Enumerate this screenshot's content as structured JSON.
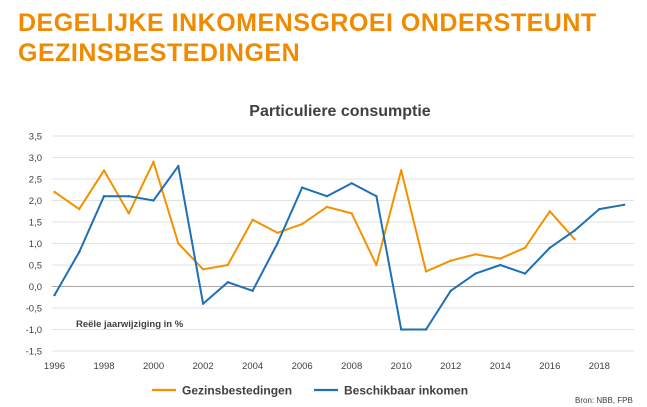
{
  "header": {
    "title_line1": "DEGELIJKE INKOMENSGROEI ONDERSTEUNT",
    "title_line2": "GEZINSBESTEDINGEN"
  },
  "source": "Bron: NBB, FPB",
  "chart_data": {
    "type": "line",
    "title": "Particuliere consumptie",
    "annotation": "Reële jaarwijziging in %",
    "x": [
      1996,
      1997,
      1998,
      1999,
      2000,
      2001,
      2002,
      2003,
      2004,
      2005,
      2006,
      2007,
      2008,
      2009,
      2010,
      2011,
      2012,
      2013,
      2014,
      2015,
      2016,
      2017,
      2018,
      2019
    ],
    "xticks": [
      1996,
      1998,
      2000,
      2002,
      2004,
      2006,
      2008,
      2010,
      2012,
      2014,
      2016,
      2018
    ],
    "xlim": [
      1995.9,
      2019.4
    ],
    "yticks": [
      "3,5",
      "3,0",
      "2,5",
      "2,0",
      "1,5",
      "1,0",
      "0,5",
      "0,0",
      "-0,5",
      "-1,0",
      "-1,5"
    ],
    "ylim": [
      -1.5,
      3.5
    ],
    "gridlines": true,
    "legend_position": "bottom",
    "series": [
      {
        "name": "Gezinsbestedingen",
        "color": "#f39200",
        "values": [
          2.2,
          1.8,
          2.7,
          1.7,
          2.9,
          1.0,
          0.4,
          0.5,
          1.55,
          1.25,
          1.45,
          1.85,
          1.7,
          0.5,
          2.7,
          0.35,
          0.6,
          0.75,
          0.65,
          0.9,
          1.75,
          1.1,
          null,
          null
        ]
      },
      {
        "name": "Beschikbaar inkomen",
        "color": "#1f6fb4",
        "values": [
          -0.2,
          0.8,
          2.1,
          2.1,
          2.0,
          2.8,
          -0.4,
          0.1,
          -0.1,
          1.0,
          2.3,
          2.1,
          2.4,
          2.1,
          -1.0,
          -1.0,
          -0.1,
          0.3,
          0.5,
          0.3,
          0.9,
          1.3,
          1.8,
          1.9
        ]
      }
    ]
  }
}
